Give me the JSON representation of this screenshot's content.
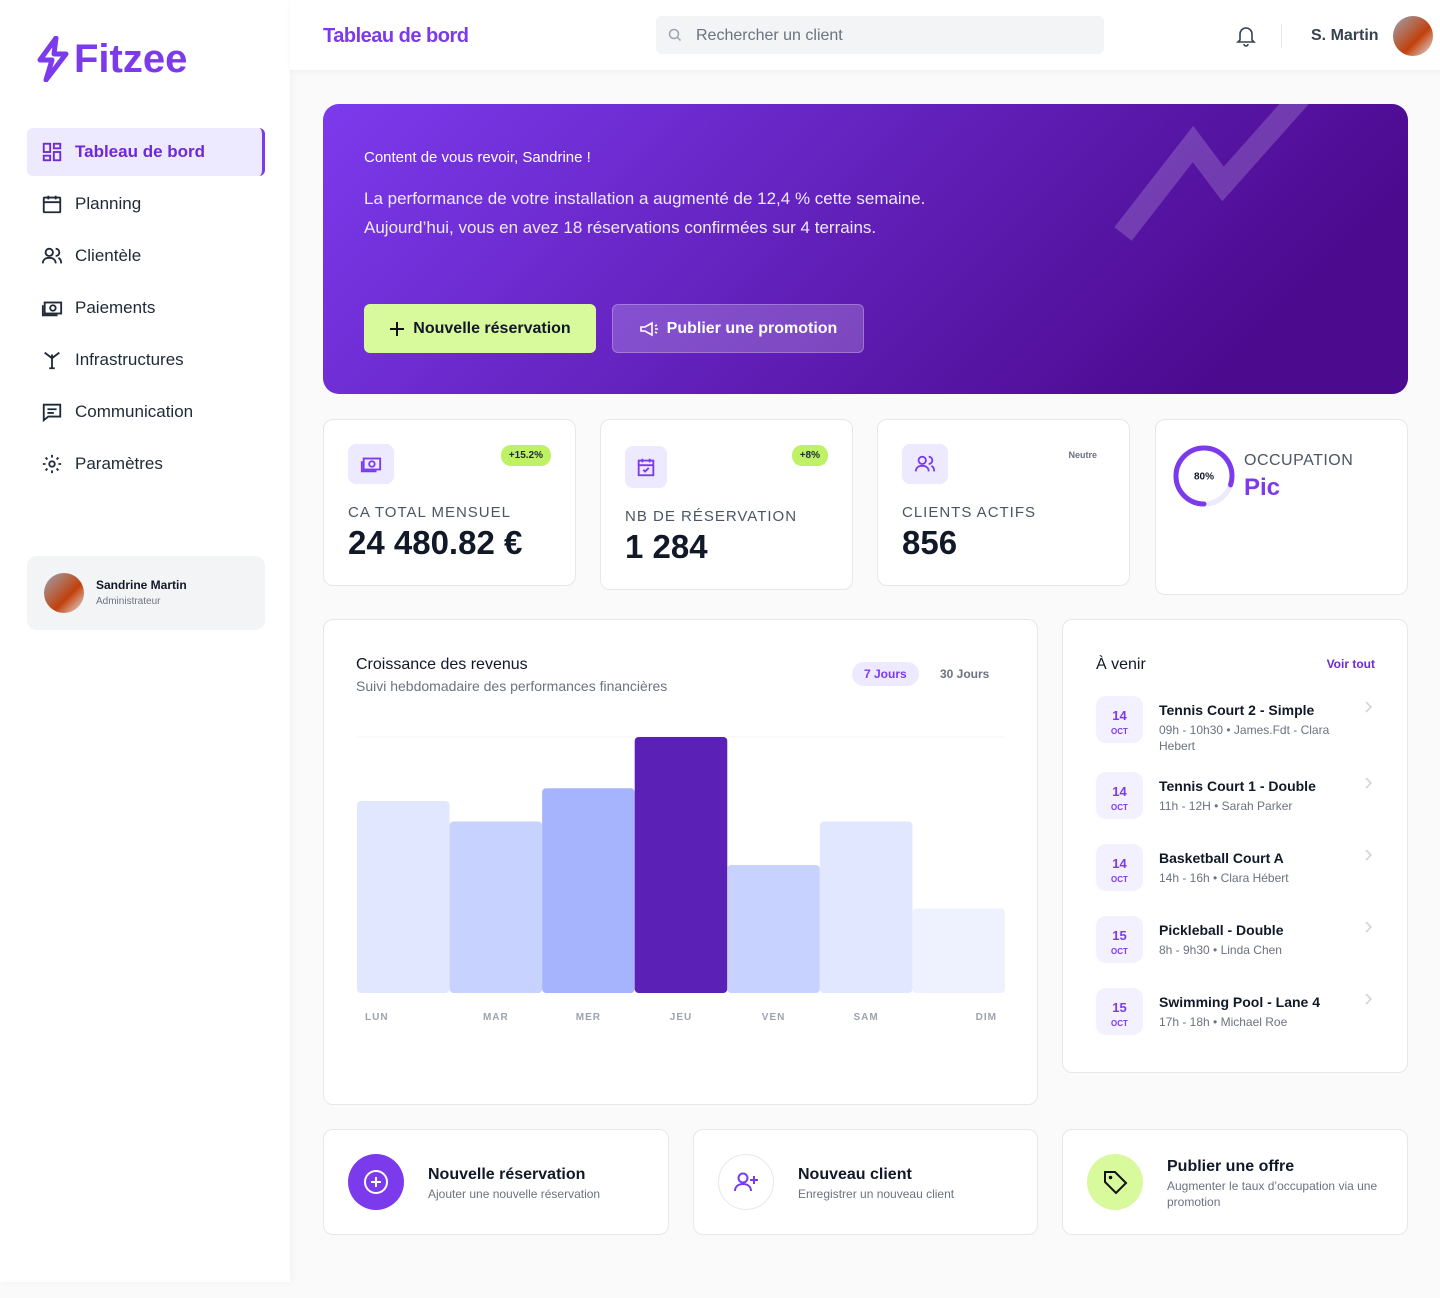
{
  "sidebar": {
    "logo": "Fitzee",
    "nav": [
      "Tableau de bord",
      "Planning",
      "Clientèle",
      "Paiements",
      "Infrastructures",
      "Communication",
      "Paramètres"
    ],
    "user": {
      "name": "Sandrine Martin",
      "role": "Administrateur"
    }
  },
  "header": {
    "title": "Tableau de bord",
    "search_placeholder": "Rechercher un client",
    "user": "S. Martin"
  },
  "hero": {
    "greeting": "Content de vous revoir, Sandrine !",
    "line1": "La performance de votre installation a augmenté de 12,4 % cette semaine.",
    "line2": "Aujourd’hui, vous en avez 18 réservations confirmées sur 4 terrains.",
    "buttons": [
      "Nouvelle réservation",
      "Publier une promotion"
    ]
  },
  "stats": [
    {
      "label": "CA TOTAL MENSUEL",
      "value": "24 480.82 €",
      "badge": "+15.2%"
    },
    {
      "label": "NB DE RÉSERVATION",
      "value": "1 284",
      "badge": "+8%"
    },
    {
      "label": "CLIENTS ACTIFS",
      "value": "856",
      "badge": "Neutre"
    }
  ],
  "occupation": {
    "label": "OCCUPATION",
    "status": "Pic",
    "value": 80,
    "value_label": "80%"
  },
  "chart_data": {
    "type": "bar",
    "title": "Croissance des revenus",
    "subtitle": "Suivi hebdomadaire des performances financières",
    "tabs": [
      "7 Jours",
      "30 Jours"
    ],
    "categories": [
      "LUN",
      "MAR",
      "MER",
      "JEU",
      "VEN",
      "SAM",
      "DIM"
    ],
    "values": [
      75,
      67,
      80,
      100,
      50,
      67,
      33
    ],
    "colors": [
      "#e0e7ff",
      "#c7d2fe",
      "#a5b4fc",
      "#5b21b6",
      "#c7d2fe",
      "#e0e7ff",
      "#eef2ff"
    ],
    "ylim": [
      0,
      100
    ]
  },
  "upcoming": {
    "title": "À venir",
    "link": "Voir tout",
    "items": [
      {
        "day": "14",
        "month": "OCT",
        "title": "Tennis Court 2 - Simple",
        "details": "09h - 10h30 • James.Fdt - Clara Hebert"
      },
      {
        "day": "14",
        "month": "OCT",
        "title": "Tennis Court 1 - Double",
        "details": "11h - 12H • Sarah Parker"
      },
      {
        "day": "14",
        "month": "OCT",
        "title": "Basketball Court A",
        "details": "14h - 16h • Clara Hébert"
      },
      {
        "day": "15",
        "month": "OCT",
        "title": "Pickleball - Double",
        "details": "8h - 9h30 • Linda Chen"
      },
      {
        "day": "15",
        "month": "OCT",
        "title": "Swimming Pool - Lane 4",
        "details": "17h - 18h • Michael Roe"
      }
    ]
  },
  "quick_actions": [
    {
      "title": "Nouvelle réservation",
      "subtitle": "Ajouter une nouvelle réservation"
    },
    {
      "title": "Nouveau client",
      "subtitle": "Enregistrer un nouveau client"
    },
    {
      "title": "Publier une offre",
      "subtitle": "Augmenter le taux d’occupation via une promotion"
    }
  ]
}
